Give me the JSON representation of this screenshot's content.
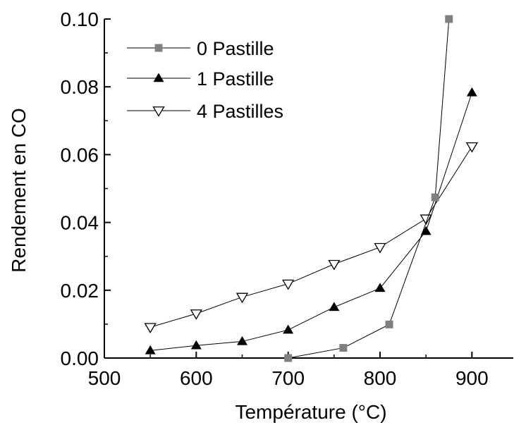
{
  "chart_data": {
    "type": "line",
    "title": "",
    "xlabel": "Température (°C)",
    "ylabel": "Rendement en CO",
    "xlim": [
      500,
      945
    ],
    "ylim": [
      0,
      0.1
    ],
    "xticks": [
      500,
      600,
      700,
      800,
      900
    ],
    "xtick_labels": [
      "500",
      "600",
      "700",
      "800",
      "900"
    ],
    "yticks": [
      0,
      0.02,
      0.04,
      0.06,
      0.08,
      0.1
    ],
    "ytick_labels": [
      "0.00",
      "0.02",
      "0.04",
      "0.06",
      "0.08",
      "0.10"
    ],
    "grid": false,
    "legend_position": "top-left",
    "series": [
      {
        "name": "0 Pastille",
        "marker": "square",
        "color": "#808080",
        "x": [
          700,
          760,
          810,
          860,
          875
        ],
        "y": [
          0.0,
          0.003,
          0.0099,
          0.0474,
          0.1
        ]
      },
      {
        "name": "1 Pastille",
        "marker": "triangle-up",
        "color": "#000000",
        "x": [
          550,
          600,
          650,
          700,
          750,
          800,
          850,
          900
        ],
        "y": [
          0.0022,
          0.0037,
          0.0049,
          0.0083,
          0.015,
          0.0206,
          0.0374,
          0.0783
        ]
      },
      {
        "name": "4 Pastilles",
        "marker": "triangle-down-open",
        "color": "#000000",
        "x": [
          550,
          600,
          650,
          700,
          750,
          800,
          850,
          900
        ],
        "y": [
          0.0091,
          0.0131,
          0.018,
          0.0219,
          0.0277,
          0.0327,
          0.0411,
          0.0624
        ]
      }
    ]
  }
}
